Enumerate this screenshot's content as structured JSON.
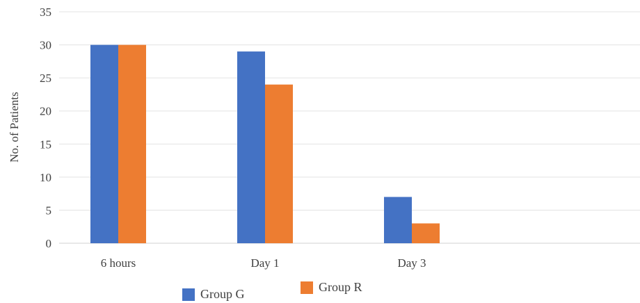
{
  "chart_data": {
    "type": "bar",
    "categories": [
      "6 hours",
      "Day 1",
      "Day 3"
    ],
    "series": [
      {
        "name": "Group G",
        "values": [
          30,
          29,
          7
        ],
        "color": "#4472C4"
      },
      {
        "name": "Group R",
        "values": [
          30,
          24,
          3
        ],
        "color": "#ED7D31"
      }
    ],
    "ylabel": "No. of Patients",
    "xlabel": "",
    "ylim": [
      0,
      35
    ],
    "yticks": [
      0,
      5,
      10,
      15,
      20,
      25,
      30,
      35
    ],
    "grid": true,
    "legend_position": "bottom"
  }
}
